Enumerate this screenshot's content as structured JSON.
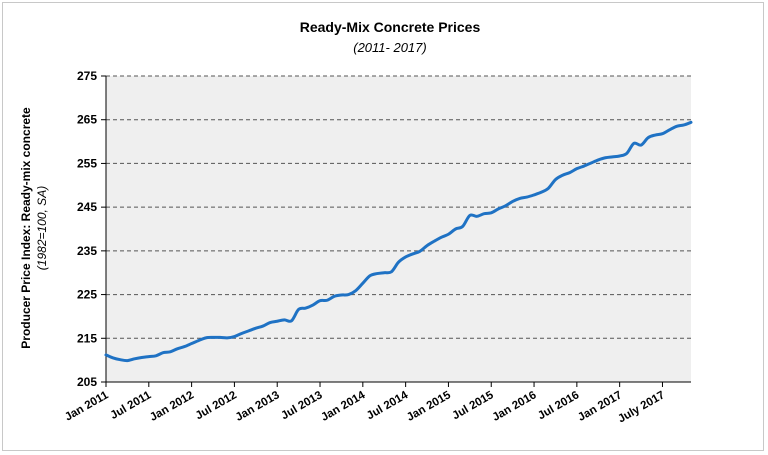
{
  "chart_data": {
    "type": "line",
    "title": "Ready-Mix Concrete Prices",
    "subtitle": "(2011- 2017)",
    "ylabel": "Producer Price Index: Ready-mix concrete",
    "ylabel_note": "(1982=100, SA)",
    "xlabel": "",
    "ylim": [
      205,
      275
    ],
    "yticks": [
      205,
      215,
      225,
      235,
      245,
      255,
      265,
      275
    ],
    "xticks": [
      "Jan 2011",
      "Jul 2011",
      "Jan 2012",
      "Jul 2012",
      "Jan 2013",
      "Jul 2013",
      "Jan 2014",
      "Jul 2014",
      "Jan 2015",
      "Jul 2015",
      "Jan 2016",
      "Jul 2016",
      "Jan 2017",
      "July 2017"
    ],
    "grid": "horizontal-dashed",
    "legend": "none",
    "colors": {
      "line": "#1f72c4",
      "plot_bg": "#efefef",
      "grid": "#555555"
    },
    "series": [
      {
        "values": [
          211.2,
          210.5,
          210.1,
          209.9,
          210.3,
          210.6,
          210.8,
          211.0,
          211.7,
          211.9,
          212.6,
          213.1,
          213.8,
          214.5,
          215.1,
          215.2,
          215.2,
          215.1,
          215.4,
          216.1,
          216.7,
          217.3,
          217.8,
          218.6,
          218.9,
          219.2,
          219.0,
          221.6,
          221.9,
          222.6,
          223.6,
          223.7,
          224.6,
          224.9,
          225.0,
          225.9,
          227.6,
          229.3,
          229.8,
          230.0,
          230.2,
          232.4,
          233.6,
          234.3,
          234.9,
          236.2,
          237.2,
          238.1,
          238.8,
          240.0,
          240.6,
          243.1,
          242.9,
          243.5,
          243.7,
          244.6,
          245.3,
          246.3,
          247.0,
          247.3,
          247.8,
          248.4,
          249.3,
          251.3,
          252.3,
          252.9,
          253.8,
          254.4,
          255.1,
          255.8,
          256.3,
          256.5,
          256.7,
          257.3,
          259.6,
          259.2,
          260.9,
          261.5,
          261.8,
          262.7,
          263.5,
          263.8,
          264.4
        ]
      }
    ]
  }
}
